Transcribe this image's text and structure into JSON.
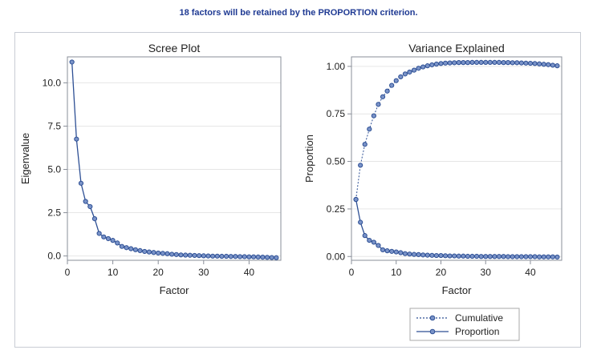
{
  "heading": "18 factors will be retained by the PROPORTION criterion.",
  "colors": {
    "heading": "#1f3a93",
    "series": "#2d4f94",
    "marker_fill": "#7a93c8"
  },
  "chart_data": [
    {
      "type": "line",
      "title": "Scree Plot",
      "xlabel": "Factor",
      "ylabel": "Eigenvalue",
      "xlim": [
        0,
        47
      ],
      "ylim": [
        -0.25,
        11.5
      ],
      "xticks": [
        "0",
        "10",
        "20",
        "30",
        "40"
      ],
      "xtick_values": [
        0,
        10,
        20,
        30,
        40
      ],
      "yticks": [
        "0.0",
        "2.5",
        "5.0",
        "7.5",
        "10.0"
      ],
      "ytick_values": [
        0,
        2.5,
        5.0,
        7.5,
        10.0
      ],
      "grid": true,
      "series": [
        {
          "x": [
            1,
            2,
            3,
            4,
            5,
            6,
            7,
            8,
            9,
            10,
            11,
            12,
            13,
            14,
            15,
            16,
            17,
            18,
            19,
            20,
            21,
            22,
            23,
            24,
            25,
            26,
            27,
            28,
            29,
            30,
            31,
            32,
            33,
            34,
            35,
            36,
            37,
            38,
            39,
            40,
            41,
            42,
            43,
            44,
            45,
            46
          ],
          "values": [
            11.2,
            6.75,
            4.2,
            3.15,
            2.85,
            2.15,
            1.3,
            1.1,
            1.0,
            0.9,
            0.75,
            0.55,
            0.48,
            0.42,
            0.36,
            0.31,
            0.26,
            0.23,
            0.2,
            0.17,
            0.15,
            0.13,
            0.1,
            0.08,
            0.06,
            0.05,
            0.04,
            0.03,
            0.02,
            0.01,
            0.0,
            -0.01,
            -0.01,
            -0.02,
            -0.02,
            -0.03,
            -0.03,
            -0.04,
            -0.04,
            -0.05,
            -0.05,
            -0.06,
            -0.07,
            -0.08,
            -0.09,
            -0.1
          ]
        }
      ]
    },
    {
      "type": "line",
      "title": "Variance Explained",
      "xlabel": "Factor",
      "ylabel": "Proportion",
      "xlim": [
        0,
        47
      ],
      "ylim": [
        -0.02,
        1.05
      ],
      "xticks": [
        "0",
        "10",
        "20",
        "30",
        "40"
      ],
      "xtick_values": [
        0,
        10,
        20,
        30,
        40
      ],
      "yticks": [
        "0.00",
        "0.25",
        "0.50",
        "0.75",
        "1.00"
      ],
      "ytick_values": [
        0,
        0.25,
        0.5,
        0.75,
        1.0
      ],
      "grid": true,
      "legend": {
        "position": "bottom-center"
      },
      "series": [
        {
          "name": "Cumulative",
          "style": "dotted",
          "x": [
            1,
            2,
            3,
            4,
            5,
            6,
            7,
            8,
            9,
            10,
            11,
            12,
            13,
            14,
            15,
            16,
            17,
            18,
            19,
            20,
            21,
            22,
            23,
            24,
            25,
            26,
            27,
            28,
            29,
            30,
            31,
            32,
            33,
            34,
            35,
            36,
            37,
            38,
            39,
            40,
            41,
            42,
            43,
            44,
            45,
            46
          ],
          "values": [
            0.3,
            0.48,
            0.59,
            0.67,
            0.74,
            0.8,
            0.84,
            0.87,
            0.9,
            0.925,
            0.945,
            0.96,
            0.97,
            0.98,
            0.99,
            0.997,
            1.003,
            1.008,
            1.012,
            1.015,
            1.017,
            1.018,
            1.019,
            1.02,
            1.02,
            1.02,
            1.021,
            1.021,
            1.021,
            1.021,
            1.021,
            1.021,
            1.021,
            1.02,
            1.02,
            1.019,
            1.019,
            1.018,
            1.017,
            1.016,
            1.015,
            1.013,
            1.011,
            1.009,
            1.006,
            1.003
          ]
        },
        {
          "name": "Proportion",
          "style": "solid",
          "x": [
            1,
            2,
            3,
            4,
            5,
            6,
            7,
            8,
            9,
            10,
            11,
            12,
            13,
            14,
            15,
            16,
            17,
            18,
            19,
            20,
            21,
            22,
            23,
            24,
            25,
            26,
            27,
            28,
            29,
            30,
            31,
            32,
            33,
            34,
            35,
            36,
            37,
            38,
            39,
            40,
            41,
            42,
            43,
            44,
            45,
            46
          ],
          "values": [
            0.3,
            0.18,
            0.11,
            0.085,
            0.075,
            0.058,
            0.035,
            0.03,
            0.027,
            0.024,
            0.02,
            0.015,
            0.013,
            0.011,
            0.01,
            0.008,
            0.007,
            0.006,
            0.005,
            0.005,
            0.004,
            0.003,
            0.003,
            0.002,
            0.002,
            0.001,
            0.001,
            0.001,
            0.0,
            0.0,
            0.0,
            0.0,
            0.0,
            0.0,
            -0.001,
            -0.001,
            -0.001,
            -0.001,
            -0.001,
            -0.001,
            -0.001,
            -0.002,
            -0.002,
            -0.002,
            -0.002,
            -0.003
          ]
        }
      ]
    }
  ]
}
